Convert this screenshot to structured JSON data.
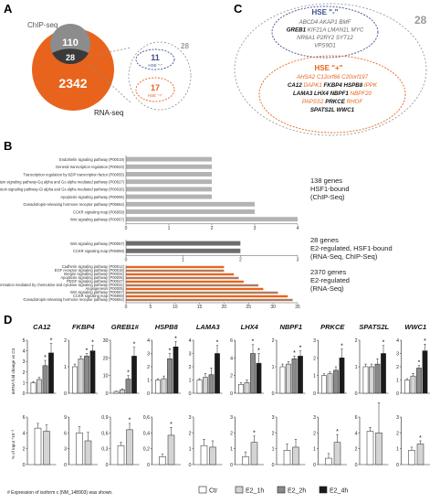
{
  "panels": {
    "A": {
      "letter": "A",
      "chip_label": "ChIP-seq",
      "rna_label": "RNA-seq",
      "chip_only": "110",
      "overlap": "28",
      "rna_only": "2342",
      "zoom_total": "28",
      "hse_minus_count": "11",
      "hse_minus_label": "HSE \"-\"",
      "hse_plus_count": "17",
      "hse_plus_label": "HSE \"+\"",
      "colors": {
        "chip": "#8c8c8c",
        "rna": "#e8641c",
        "overlap": "#3a3a3a",
        "zoom_border": "#7f7f7f"
      }
    },
    "C": {
      "letter": "C",
      "total": "28",
      "minus_title": "HSE \"-\"",
      "minus_genes": [
        [
          "ABCD4",
          "AKAP1",
          "BMF"
        ],
        [
          "GREB1",
          "KIF21A",
          "LMAN1L",
          "MYC"
        ],
        [
          "NR6A1",
          "P2RY2",
          "SYT12"
        ],
        [
          "VPS9D1"
        ]
      ],
      "minus_bold": [
        "GREB1"
      ],
      "plus_title": "HSE \"+\"",
      "plus_genes": [
        [
          "AHSA2",
          "C12orf66",
          "C20orf197"
        ],
        [
          "CA12",
          "DAPK1",
          "FKBP4",
          "HSPB8",
          "IPPK"
        ],
        [
          "LAMA3",
          "LHX4",
          "NBPF1",
          "NBPF20"
        ],
        [
          "PAPSS2",
          "PRKCE",
          "RHOF"
        ],
        [
          "SPATS2L",
          "WWC1"
        ]
      ],
      "plus_bold": [
        "CA12",
        "FKBP4",
        "HSPB8",
        "LAMA3",
        "LHX4",
        "NBPF1",
        "PRKCE",
        "SPATS2L",
        "WWC1"
      ],
      "colors": {
        "minus": "#3d4f8c",
        "plus": "#e8641c",
        "outer": "#9a9a9a"
      }
    },
    "B": {
      "letter": "B"
    },
    "D": {
      "letter": "D",
      "footnote": "# Expression of isoform c (NM_148903) was shown.",
      "ylabel_top": "mRNA fold change vs Ctr",
      "ylabel_bottom": "% of Input  *10⁻³"
    }
  },
  "legend": [
    {
      "label": "Ctr",
      "color": "#ffffff"
    },
    {
      "label": "E2_1h",
      "color": "#d4d4d4"
    },
    {
      "label": "E2_2h",
      "color": "#8a8a8a"
    },
    {
      "label": "E2_4h",
      "color": "#1a1a1a"
    }
  ],
  "chart_data": [
    {
      "type": "bar",
      "orientation": "horizontal",
      "group": "HSF1-bound (ChIP-Seq)",
      "annotation": "138 genes\nHSF1-bound\n(ChIP-Seq)",
      "categories": [
        "Endothelin signaling pathway (P00019)",
        "General transcription regulation (P00023)",
        "Transcription regulation by bZIP transcription factor (P00055)",
        "Heterotrimeric G-protein signaling pathway-Gq alpha and Go alpha mediated pathway (P00027)",
        "Heterotrimeric G-protein signaling pathway-Gi alpha and Gs alpha mediated pathway (P00026)",
        "Apoptosis signaling pathway (P00006)",
        "Gonadotropin-releasing hormone receptor pathway (P06664)",
        "CCKR signaling map (P06959)",
        "Wnt signaling pathway (P00057)"
      ],
      "values": [
        2,
        2,
        2,
        2,
        2,
        2,
        3,
        3,
        4
      ],
      "xlim": [
        0,
        4
      ],
      "xticks": [
        "0",
        "1",
        "2",
        "3",
        "4"
      ],
      "color": "#b3b3b3"
    },
    {
      "type": "bar",
      "orientation": "horizontal",
      "group": "E2-regulated, HSF1-bound",
      "annotation": "28 genes\nE2-regulated, HSF1-bound\n(RNA-Seq, ChIP-Seq)",
      "categories": [
        "Wnt signaling pathway (P00057)",
        "CCKR signaling map (P06959)"
      ],
      "values": [
        2,
        2
      ],
      "xlim": [
        0,
        3
      ],
      "xticks": [
        "0",
        "1",
        "2",
        "3"
      ],
      "color": "#6e6e6e"
    },
    {
      "type": "bar",
      "orientation": "horizontal",
      "group": "E2-regulated (RNA-Seq)",
      "annotation": "2370 genes\nE2-regulated\n(RNA-Seq)",
      "categories": [
        "Cadherin signaling pathway (P00012)",
        "EGF receptor signaling pathway (P00018)",
        "Integrin signalling pathway (P00034)",
        "Apoptosis signaling pathway (P00006)",
        "PDGF signaling pathway (P00047)",
        "Inflammation mediated by chemokine and cytokine signaling pathway (P00031)",
        "Angiogenesis (P00005)",
        "Wnt signaling pathway (P00057)",
        "CCKR signaling map (P06959)",
        "Gonadotropin-releasing hormone receptor pathway (P06664)"
      ],
      "values": [
        20,
        20,
        22,
        23,
        24,
        27,
        28,
        31,
        33,
        34
      ],
      "xlim": [
        0,
        35
      ],
      "xticks": [
        "0",
        "5",
        "10",
        "15",
        "20",
        "25",
        "30",
        "35"
      ],
      "colors": [
        "#e8641c",
        "#b07a5a"
      ]
    },
    {
      "type": "bar",
      "group": "mRNA fold change vs Ctr",
      "categories": [
        "CA12",
        "FKBP4",
        "GREB1#",
        "HSPB8",
        "LAMA3",
        "LHX4",
        "NBPF1",
        "PRKCE",
        "SPATS2L",
        "WWC1"
      ],
      "series_labels": [
        "Ctr",
        "E2_1h",
        "E2_2h",
        "E2_4h"
      ],
      "panels": [
        {
          "gene": "CA12",
          "ymax": 5,
          "yticks": [
            "0",
            "1",
            "2",
            "3",
            "4",
            "5"
          ],
          "values": [
            1.0,
            1.3,
            2.6,
            3.8
          ],
          "errors": [
            0.1,
            0.2,
            0.5,
            0.9
          ],
          "stars": [
            false,
            false,
            true,
            true
          ]
        },
        {
          "gene": "FKBP4",
          "ymax": 2,
          "yticks": [
            "0",
            "1",
            "2"
          ],
          "values": [
            1.0,
            1.3,
            1.4,
            1.6
          ],
          "errors": [
            0.1,
            0.1,
            0.1,
            0.2
          ],
          "stars": [
            false,
            false,
            true,
            true
          ]
        },
        {
          "gene": "GREB1#",
          "ymax": 30,
          "yticks": [
            "0",
            "10",
            "20",
            "30"
          ],
          "values": [
            1,
            2,
            8,
            21
          ],
          "errors": [
            0.2,
            0.5,
            2,
            5
          ],
          "stars": [
            false,
            false,
            true,
            true
          ]
        },
        {
          "gene": "HSPB8",
          "ymax": 4,
          "yticks": [
            "0",
            "1",
            "2",
            "3",
            "4"
          ],
          "values": [
            1.0,
            1.1,
            2.6,
            3.5
          ],
          "errors": [
            0.1,
            0.2,
            0.4,
            0.4
          ],
          "stars": [
            false,
            false,
            true,
            true
          ]
        },
        {
          "gene": "LAMA3",
          "ymax": 4,
          "yticks": [
            "0",
            "1",
            "2",
            "3",
            "4"
          ],
          "values": [
            1.0,
            1.2,
            1.4,
            3.0
          ],
          "errors": [
            0.1,
            0.3,
            0.5,
            0.6
          ],
          "stars": [
            false,
            false,
            false,
            true
          ]
        },
        {
          "gene": "LHX4",
          "ymax": 6,
          "yticks": [
            "0",
            "2",
            "4",
            "6"
          ],
          "values": [
            1.0,
            1.2,
            4.5,
            3.4
          ],
          "errors": [
            0.2,
            0.3,
            1.0,
            1.1
          ],
          "stars": [
            false,
            false,
            true,
            true
          ]
        },
        {
          "gene": "NBPF1",
          "ymax": 2,
          "yticks": [
            "0",
            "1",
            "2"
          ],
          "values": [
            1.0,
            1.1,
            1.3,
            1.4
          ],
          "errors": [
            0.1,
            0.1,
            0.1,
            0.2
          ],
          "stars": [
            false,
            false,
            true,
            true
          ]
        },
        {
          "gene": "PRKCE",
          "ymax": 3,
          "yticks": [
            "0",
            "1",
            "2",
            "3"
          ],
          "values": [
            1.0,
            1.1,
            1.3,
            2.0
          ],
          "errors": [
            0.1,
            0.1,
            0.2,
            0.5
          ],
          "stars": [
            false,
            false,
            false,
            true
          ]
        },
        {
          "gene": "SPATS2L",
          "ymax": 2,
          "yticks": [
            "0",
            "1",
            "2"
          ],
          "values": [
            1.0,
            1.0,
            1.1,
            1.5
          ],
          "errors": [
            0.1,
            0.1,
            0.2,
            0.3
          ],
          "stars": [
            false,
            false,
            false,
            true
          ]
        },
        {
          "gene": "WWC1",
          "ymax": 4,
          "yticks": [
            "0",
            "1",
            "2",
            "3",
            "4"
          ],
          "values": [
            1.0,
            1.3,
            1.9,
            3.2
          ],
          "errors": [
            0.1,
            0.2,
            0.2,
            0.5
          ],
          "stars": [
            false,
            false,
            true,
            true
          ]
        }
      ]
    },
    {
      "type": "bar",
      "group": "% of Input *10^-3",
      "series_labels": [
        "Ctr",
        "E2_1h"
      ],
      "panels": [
        {
          "gene": "CA12",
          "ymax": 6,
          "yticks": [
            "0",
            "2",
            "4",
            "6"
          ],
          "values": [
            4.6,
            4.2
          ],
          "errors": [
            0.6,
            0.8
          ],
          "stars": [
            false,
            false
          ]
        },
        {
          "gene": "FKBP4",
          "ymax": 9,
          "yticks": [
            "0",
            "3",
            "6",
            "9"
          ],
          "values": [
            6.0,
            4.5
          ],
          "errors": [
            1.2,
            1.6
          ],
          "stars": [
            false,
            false
          ]
        },
        {
          "gene": "GREB1#",
          "ymax": 0.9,
          "yticks": [
            "0",
            "0,3",
            "0,6",
            "0,9"
          ],
          "values": [
            0.36,
            0.66
          ],
          "errors": [
            0.06,
            0.12
          ],
          "stars": [
            false,
            true
          ]
        },
        {
          "gene": "HSPB8",
          "ymax": 0.6,
          "yticks": [
            "0",
            "0,2",
            "0,4",
            "0,6"
          ],
          "values": [
            0.1,
            0.37
          ],
          "errors": [
            0.03,
            0.1
          ],
          "stars": [
            false,
            true
          ]
        },
        {
          "gene": "LAMA3",
          "ymax": 3,
          "yticks": [
            "0",
            "1",
            "2",
            "3"
          ],
          "values": [
            1.2,
            1.1
          ],
          "errors": [
            0.4,
            0.4
          ],
          "stars": [
            false,
            false
          ]
        },
        {
          "gene": "LHX4",
          "ymax": 3,
          "yticks": [
            "0",
            "1",
            "2",
            "3"
          ],
          "values": [
            0.5,
            1.4
          ],
          "errors": [
            0.3,
            0.4
          ],
          "stars": [
            false,
            true
          ]
        },
        {
          "gene": "NBPF1",
          "ymax": 3,
          "yticks": [
            "0",
            "1",
            "2",
            "3"
          ],
          "values": [
            0.9,
            1.1
          ],
          "errors": [
            0.4,
            0.5
          ],
          "stars": [
            false,
            false
          ]
        },
        {
          "gene": "PRKCE",
          "ymax": 3,
          "yticks": [
            "0",
            "1",
            "2",
            "3"
          ],
          "values": [
            0.4,
            1.4
          ],
          "errors": [
            0.3,
            0.5
          ],
          "stars": [
            false,
            true
          ]
        },
        {
          "gene": "SPATS2L",
          "ymax": 6,
          "yticks": [
            "0",
            "2",
            "4",
            "6"
          ],
          "values": [
            4.2,
            4.0
          ],
          "errors": [
            0.5,
            3.8
          ],
          "stars": [
            false,
            false
          ]
        },
        {
          "gene": "WWC1",
          "ymax": 3,
          "yticks": [
            "0",
            "1",
            "2",
            "3"
          ],
          "values": [
            0.9,
            1.3
          ],
          "errors": [
            0.2,
            0.2
          ],
          "stars": [
            false,
            true
          ]
        }
      ]
    }
  ]
}
